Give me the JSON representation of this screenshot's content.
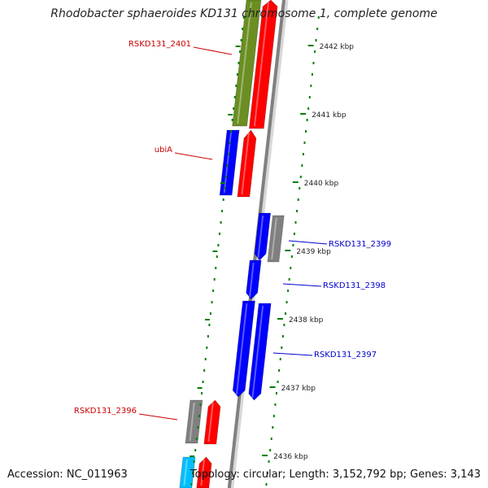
{
  "title": "Rhodobacter sphaeroides KD131 chromosome 1, complete genome",
  "footer": {
    "accession": "Accession: NC_011963",
    "topology": "Topology: circular; Length: 3,152,792 bp; Genes: 3,143"
  },
  "colors": {
    "forward_gene": "#ff0000",
    "reverse_gene": "#0000ff",
    "other_gene": "#808080",
    "olive_feature": "#6b8e23",
    "cyan_feature": "#00bfff",
    "backbone": "#808080",
    "tick": "#008000",
    "label_red": "#cc0000",
    "label_blue": "#0000cc"
  },
  "tick_labels": [
    "2442 kbp",
    "2441 kbp",
    "2440 kbp",
    "2439 kbp",
    "2438 kbp",
    "2437 kbp",
    "2436 kbp"
  ],
  "gene_labels": [
    {
      "text": "RSKD131_2401",
      "strand": "forward"
    },
    {
      "text": "ubiA",
      "strand": "forward"
    },
    {
      "text": "RSKD131_2399",
      "strand": "reverse"
    },
    {
      "text": "RSKD131_2398",
      "strand": "reverse"
    },
    {
      "text": "RSKD131_2397",
      "strand": "reverse"
    },
    {
      "text": "RSKD131_2396",
      "strand": "forward"
    }
  ]
}
